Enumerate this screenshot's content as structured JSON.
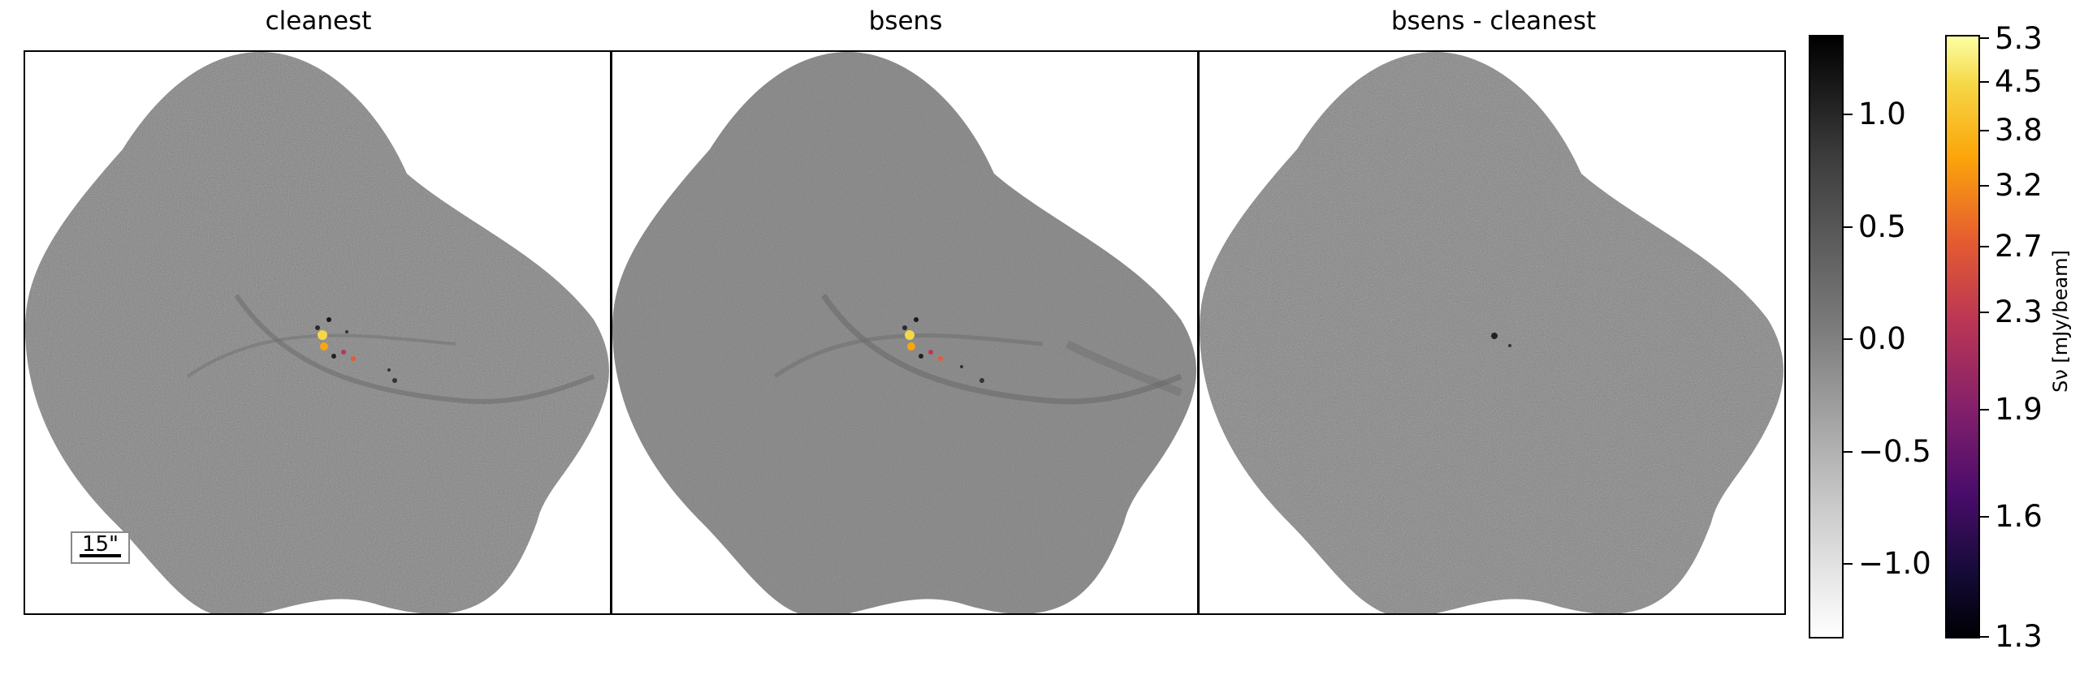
{
  "panels": [
    {
      "title": "cleanest"
    },
    {
      "title": "bsens"
    },
    {
      "title": "bsens - cleanest"
    }
  ],
  "scalebar": {
    "label": "15\""
  },
  "colorbar_gray": {
    "colormap": "gray_r",
    "range": [
      -1.3,
      1.3
    ],
    "ticks": [
      "1.0",
      "0.5",
      "0.0",
      "−0.5",
      "−1.0"
    ],
    "tick_values": [
      1.0,
      0.5,
      0.0,
      -0.5,
      -1.0
    ]
  },
  "colorbar_inferno": {
    "colormap": "inferno",
    "range": [
      1.3,
      5.3
    ],
    "ticks": [
      "5.3",
      "4.5",
      "3.8",
      "3.2",
      "2.7",
      "2.3",
      "1.9",
      "1.6",
      "1.3"
    ],
    "label": "Sν [mJy/beam]"
  },
  "colors": {
    "map_gray": "#808080",
    "background": "#ffffff",
    "frame": "#000000"
  }
}
